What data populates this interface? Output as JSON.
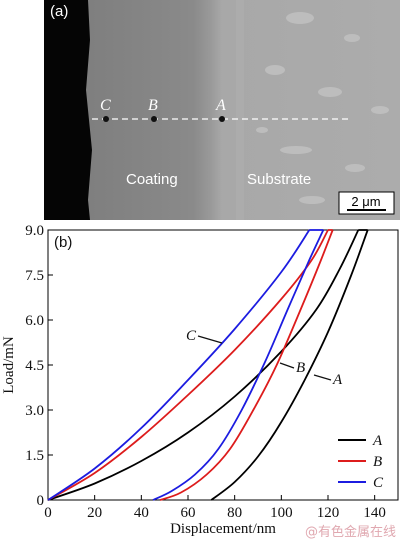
{
  "panel_a": {
    "label": "(a)",
    "coating_label": "Coating",
    "substrate_label": "Substrate",
    "scale_bar": "2 μm",
    "points": [
      "C",
      "B",
      "A"
    ]
  },
  "panel_b": {
    "label": "(b)"
  },
  "watermark": "@有色金属在线",
  "chart_data": {
    "type": "line",
    "xlabel": "Displacement/nm",
    "ylabel": "Load/mN",
    "xlim": [
      0,
      150
    ],
    "ylim": [
      0,
      9.0
    ],
    "xticks": [
      "0",
      "20",
      "40",
      "60",
      "80",
      "100",
      "120",
      "140"
    ],
    "xtick_values": [
      0,
      20,
      40,
      60,
      80,
      100,
      120,
      140
    ],
    "yticks": [
      "0",
      "1.5",
      "3.0",
      "4.5",
      "6.0",
      "7.5",
      "9.0"
    ],
    "ytick_values": [
      0,
      1.5,
      3.0,
      4.5,
      6.0,
      7.5,
      9.0
    ],
    "legend_position": "bottom-right",
    "colors": {
      "A": "#000000",
      "B": "#dd1c1c",
      "C": "#1c1ce0"
    },
    "series": [
      {
        "name": "A",
        "loading": [
          [
            0,
            0
          ],
          [
            20,
            0.55
          ],
          [
            40,
            1.3
          ],
          [
            60,
            2.25
          ],
          [
            80,
            3.45
          ],
          [
            100,
            4.95
          ],
          [
            115,
            6.35
          ],
          [
            125,
            7.7
          ],
          [
            133,
            9.0
          ]
        ],
        "unloading": [
          [
            137,
            9.0
          ],
          [
            130,
            7.5
          ],
          [
            120,
            5.6
          ],
          [
            110,
            4.0
          ],
          [
            100,
            2.6
          ],
          [
            90,
            1.45
          ],
          [
            80,
            0.6
          ],
          [
            70,
            0
          ]
        ]
      },
      {
        "name": "B",
        "loading": [
          [
            0,
            0
          ],
          [
            20,
            0.9
          ],
          [
            40,
            2.1
          ],
          [
            60,
            3.5
          ],
          [
            80,
            5.0
          ],
          [
            100,
            6.7
          ],
          [
            113,
            8.0
          ],
          [
            120,
            9.0
          ]
        ],
        "unloading": [
          [
            122,
            9.0
          ],
          [
            117,
            8.0
          ],
          [
            108,
            6.3
          ],
          [
            98,
            4.5
          ],
          [
            88,
            3.0
          ],
          [
            78,
            1.7
          ],
          [
            68,
            0.85
          ],
          [
            57,
            0.25
          ],
          [
            48,
            0
          ]
        ]
      },
      {
        "name": "C",
        "loading": [
          [
            0,
            0
          ],
          [
            20,
            1.05
          ],
          [
            40,
            2.4
          ],
          [
            60,
            4.0
          ],
          [
            80,
            5.7
          ],
          [
            100,
            7.6
          ],
          [
            112,
            9.0
          ]
        ],
        "unloading": [
          [
            118,
            9.0
          ],
          [
            112,
            8.0
          ],
          [
            103,
            6.4
          ],
          [
            93,
            4.6
          ],
          [
            83,
            3.0
          ],
          [
            73,
            1.7
          ],
          [
            63,
            0.85
          ],
          [
            53,
            0.3
          ],
          [
            45,
            0
          ]
        ]
      }
    ],
    "annotations": [
      {
        "text": "C",
        "series": "C"
      },
      {
        "text": "B",
        "series": "B"
      },
      {
        "text": "A",
        "series": "A"
      }
    ]
  }
}
